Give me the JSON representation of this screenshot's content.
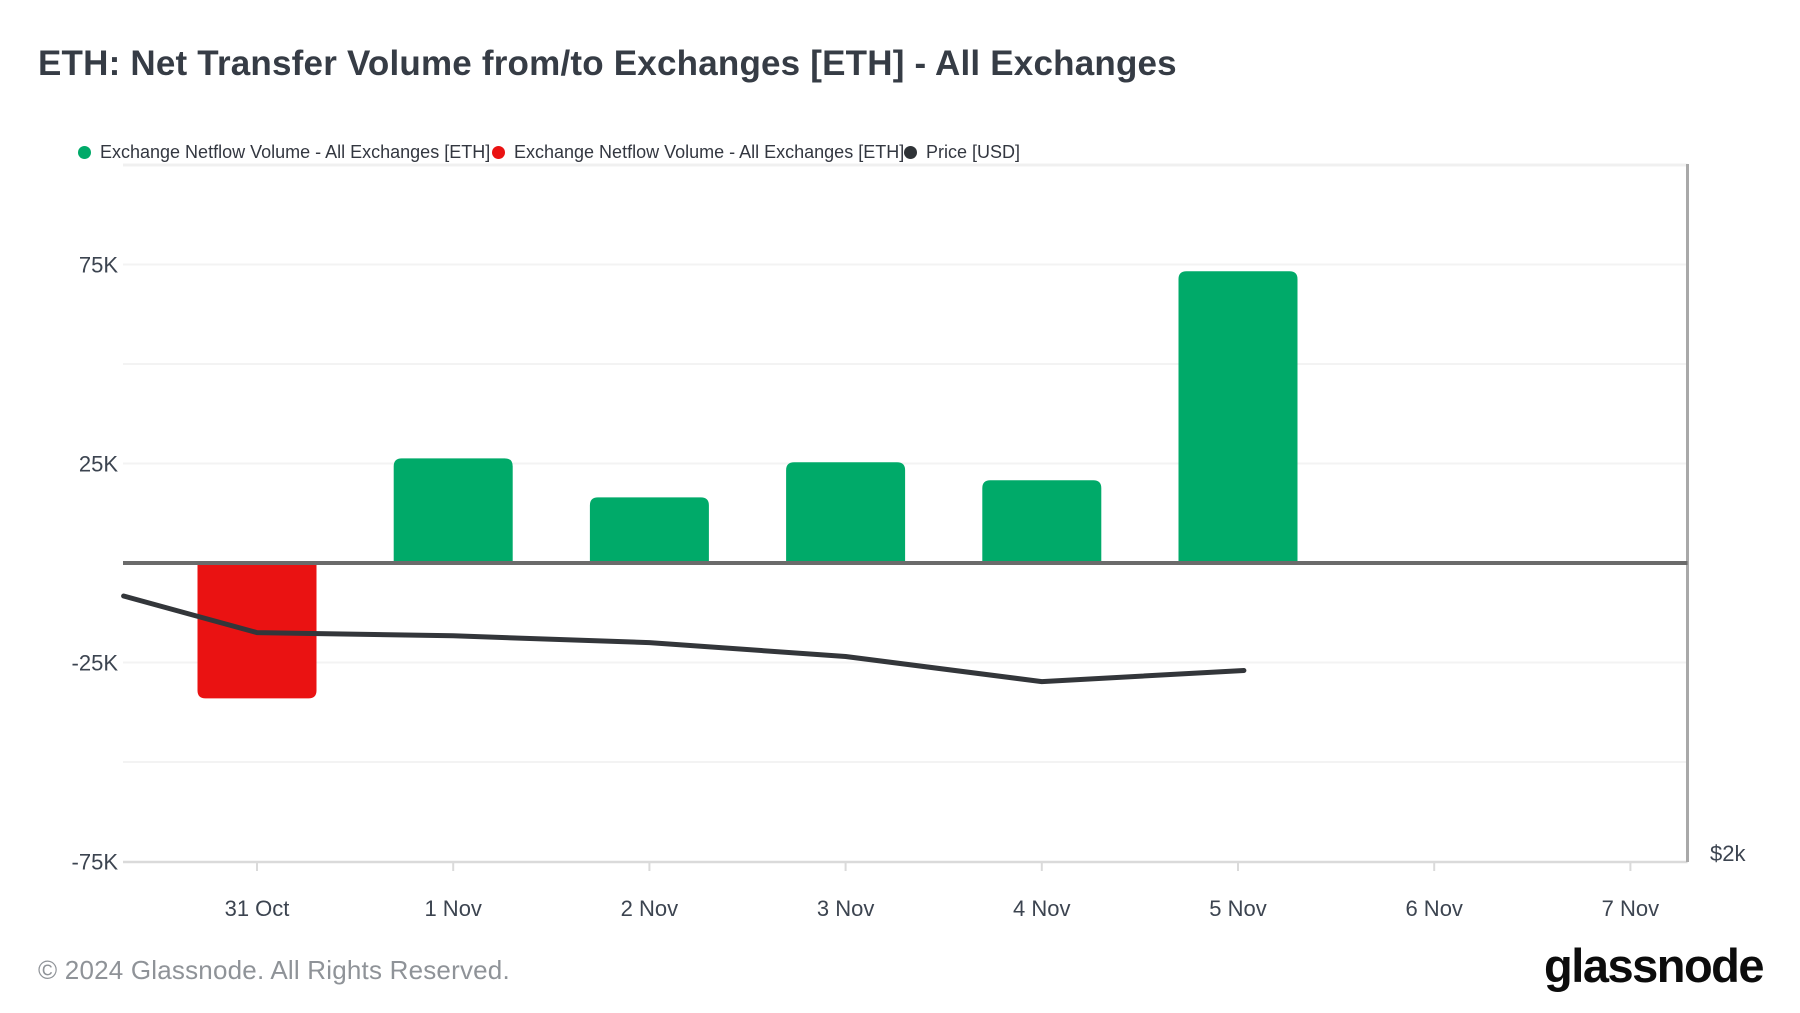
{
  "header": {
    "title": "ETH: Net Transfer Volume from/to Exchanges [ETH] - All Exchanges"
  },
  "legend": {
    "items": [
      {
        "label": "Exchange Netflow Volume - All Exchanges [ETH]",
        "color": "#00aa69"
      },
      {
        "label": "Exchange Netflow Volume - All Exchanges [ETH]",
        "color": "#ea1212"
      },
      {
        "label": "Price [USD]",
        "color": "#2f3337"
      }
    ]
  },
  "chart_data": {
    "type": "bar+line",
    "title": "ETH: Net Transfer Volume from/to Exchanges [ETH] - All Exchanges",
    "categories": [
      "31 Oct",
      "1 Nov",
      "2 Nov",
      "3 Nov",
      "4 Nov",
      "5 Nov",
      "6 Nov",
      "7 Nov"
    ],
    "series": [
      {
        "name": "Exchange Netflow Volume - All Exchanges [ETH]",
        "type": "bar",
        "unit": "ETH",
        "values": [
          -34000,
          26300,
          16500,
          25300,
          20800,
          73300,
          null,
          null
        ],
        "positive_color": "#00aa69",
        "negative_color": "#ea1212"
      },
      {
        "name": "Price [USD]",
        "type": "line",
        "axis": "right",
        "color": "#33363a",
        "note": "only the $2k tick is labeled on the right axis; points give plotted position expressed in left-axis K units",
        "points": [
          {
            "x_day": -0.68,
            "y_left_axis_k": -8.3
          },
          {
            "x_day": 0,
            "y_left_axis_k": -17.5
          },
          {
            "x_day": 1,
            "y_left_axis_k": -18.3
          },
          {
            "x_day": 2,
            "y_left_axis_k": -20.0
          },
          {
            "x_day": 3,
            "y_left_axis_k": -23.5
          },
          {
            "x_day": 4,
            "y_left_axis_k": -29.8
          },
          {
            "x_day": 5.03,
            "y_left_axis_k": -27.0
          }
        ]
      }
    ],
    "left_axis": {
      "tick_labels": [
        "75K",
        "25K",
        "-25K",
        "-75K"
      ],
      "tick_values_k": [
        75,
        25,
        -25,
        -75
      ],
      "gridlines_k": [
        75,
        50,
        25,
        -25,
        -50
      ],
      "range_k": [
        -75.4,
        99.7
      ],
      "zero_line": true
    },
    "right_axis": {
      "tick_labels": [
        "$2k"
      ]
    },
    "x_axis": {
      "tick_labels": [
        "31 Oct",
        "1 Nov",
        "2 Nov",
        "3 Nov",
        "4 Nov",
        "5 Nov",
        "6 Nov",
        "7 Nov"
      ]
    },
    "legend_position": "top-left",
    "grid": "horizontal-only"
  },
  "footer": {
    "copyright": "© 2024 Glassnode. All Rights Reserved.",
    "brand": "glassnode"
  }
}
